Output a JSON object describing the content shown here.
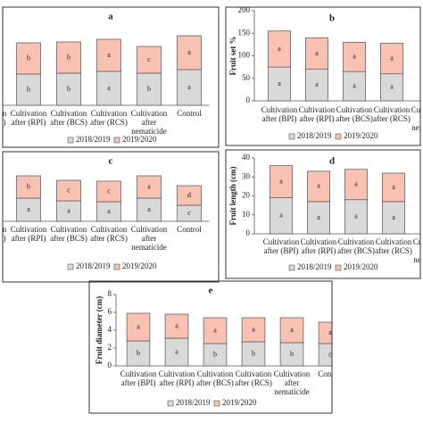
{
  "chart_data": [
    {
      "type": "stacked_bar",
      "title": "a",
      "categories": [
        [
          "Cultivation",
          "after (BPI)"
        ],
        [
          "Cultivation",
          "after (RPI)"
        ],
        [
          "Cultivation",
          "after (BCS)"
        ],
        [
          "Cultivation",
          "after (RCS)"
        ],
        [
          "Cultivation",
          "after",
          "nematicide"
        ],
        [
          "Control"
        ]
      ],
      "series": [
        {
          "name": "2018/2019",
          "color": "#d9d9d9",
          "values": [
            null,
            35,
            36,
            38,
            36,
            40
          ],
          "letters": [
            null,
            "b",
            "b",
            "a",
            "b",
            "a"
          ]
        },
        {
          "name": "2019/2020",
          "color": "#f8c1b1",
          "values": [
            null,
            35,
            35,
            36,
            30,
            38
          ],
          "letters": [
            null,
            "b",
            "b",
            "a",
            "c",
            "a"
          ]
        }
      ],
      "ylim": [
        0,
        100
      ]
    },
    {
      "type": "stacked_bar",
      "title": "b",
      "ylabel": "Fruit set %",
      "categories": [
        [
          "Cultivation",
          "after (BPI)"
        ],
        [
          "Cultivation",
          "after (RPI)"
        ],
        [
          "Cultivation",
          "after (BCS)"
        ],
        [
          "Cultivation",
          "after (RCS)"
        ],
        [
          "Cultivation",
          "after",
          "nematicide"
        ]
      ],
      "series": [
        {
          "name": "2018/2019",
          "color": "#d9d9d9",
          "values": [
            75,
            70,
            65,
            60,
            null
          ],
          "letters": [
            "a",
            "a",
            "a",
            "a",
            null
          ]
        },
        {
          "name": "2019/2020",
          "color": "#f8c1b1",
          "values": [
            80,
            70,
            65,
            68,
            null
          ],
          "letters": [
            "a",
            "a",
            "a",
            "a",
            null
          ]
        }
      ],
      "ylim": [
        0,
        200
      ],
      "yticks": [
        0,
        50,
        100,
        150,
        200
      ]
    },
    {
      "type": "stacked_bar",
      "title": "c",
      "categories": [
        [
          "Cultivation",
          "after (BPI)"
        ],
        [
          "Cultivation",
          "after (RPI)"
        ],
        [
          "Cultivation",
          "after (BCS)"
        ],
        [
          "Cultivation",
          "after (RCS)"
        ],
        [
          "Cultivation",
          "after",
          "nematicide"
        ],
        [
          "Control"
        ]
      ],
      "series": [
        {
          "name": "2018/2019",
          "color": "#d9d9d9",
          "values": [
            null,
            26,
            23,
            22,
            26,
            18
          ],
          "letters": [
            null,
            "a",
            "a",
            "a",
            "a",
            "c"
          ]
        },
        {
          "name": "2019/2020",
          "color": "#f8c1b1",
          "values": [
            null,
            25,
            23,
            23,
            25,
            22
          ],
          "letters": [
            null,
            "b",
            "c",
            "c",
            "a",
            "d"
          ]
        }
      ],
      "ylim": [
        0,
        100
      ]
    },
    {
      "type": "stacked_bar",
      "title": "d",
      "ylabel": "Fruit length (cm)",
      "categories": [
        [
          "Cultivation",
          "after (BPI)"
        ],
        [
          "Cultivation",
          "after (RPI)"
        ],
        [
          "Cultivation",
          "after (BCS)"
        ],
        [
          "Cultivation",
          "after (RCS)"
        ],
        [
          "Cultivation",
          "after",
          "nematicide"
        ]
      ],
      "series": [
        {
          "name": "2018/2019",
          "color": "#d9d9d9",
          "values": [
            19,
            17,
            18,
            17,
            null
          ],
          "letters": [
            "a",
            "a",
            "a",
            "a",
            null
          ]
        },
        {
          "name": "2019/2020",
          "color": "#f8c1b1",
          "values": [
            17,
            16,
            16,
            15,
            null
          ],
          "letters": [
            "a",
            "a",
            "a",
            "a",
            null
          ]
        }
      ],
      "ylim": [
        0,
        40
      ],
      "yticks": [
        0,
        10,
        20,
        30,
        40
      ]
    },
    {
      "type": "stacked_bar",
      "title": "e",
      "ylabel": "Fruit diameter (cm)",
      "categories": [
        [
          "Cultivation",
          "after (BPI)"
        ],
        [
          "Cultivation",
          "after (RPI)"
        ],
        [
          "Cultivation",
          "after (BCS)"
        ],
        [
          "Cultivation",
          "after (RCS)"
        ],
        [
          "Cultivation",
          "after",
          "nematicide"
        ],
        [
          "Control"
        ]
      ],
      "series": [
        {
          "name": "2018/2019",
          "color": "#d9d9d9",
          "values": [
            2.8,
            3.1,
            2.5,
            2.7,
            2.6,
            2.5
          ],
          "letters": [
            "b",
            "a",
            "b",
            "b",
            "b",
            "c"
          ]
        },
        {
          "name": "2019/2020",
          "color": "#f8c1b1",
          "values": [
            3.1,
            2.7,
            2.9,
            2.7,
            2.8,
            2.4
          ],
          "letters": [
            "a",
            "a",
            "a",
            "a",
            "a",
            "a"
          ]
        }
      ],
      "ylim": [
        0,
        8
      ],
      "yticks": [
        0,
        2,
        4,
        6,
        8
      ]
    }
  ]
}
